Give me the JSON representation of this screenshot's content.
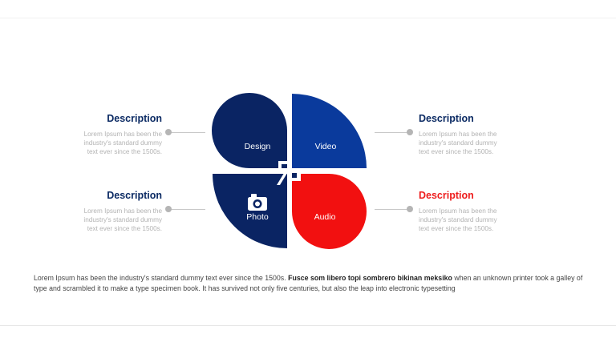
{
  "colors": {
    "navy": "#0a2463",
    "blue": "#0a3a9c",
    "red": "#f21010",
    "label": "#0b2a63",
    "accent": "#ee1c1c",
    "gray_text": "#b3b3b3"
  },
  "petals": {
    "design": "Design",
    "video": "Video",
    "photo": "Photo",
    "audio": "Audio",
    "photo_icon": "camera-icon"
  },
  "descriptions": {
    "top_left": {
      "title": "Description",
      "text": "Lorem Ipsum has been the industry's standard dummy text ever since the 1500s."
    },
    "bottom_left": {
      "title": "Description",
      "text": "Lorem Ipsum has been the industry's standard dummy text ever since the 1500s."
    },
    "top_right": {
      "title": "Description",
      "text": "Lorem Ipsum has been the industry's standard dummy text ever since the 1500s."
    },
    "bottom_right": {
      "title": "Description",
      "text": "Lorem Ipsum has been the industry's standard dummy text ever since the 1500s."
    }
  },
  "footer": {
    "text_before": "Lorem Ipsum has been the industry's standard dummy text ever since the 1500s. ",
    "bold": "Fusce som libero topi sombrero bikinan meksiko",
    "text_after": " when an unknown printer took a galley of type and scrambled it to make a type specimen book. It has survived not only five centuries, but also the leap into electronic typesetting"
  }
}
